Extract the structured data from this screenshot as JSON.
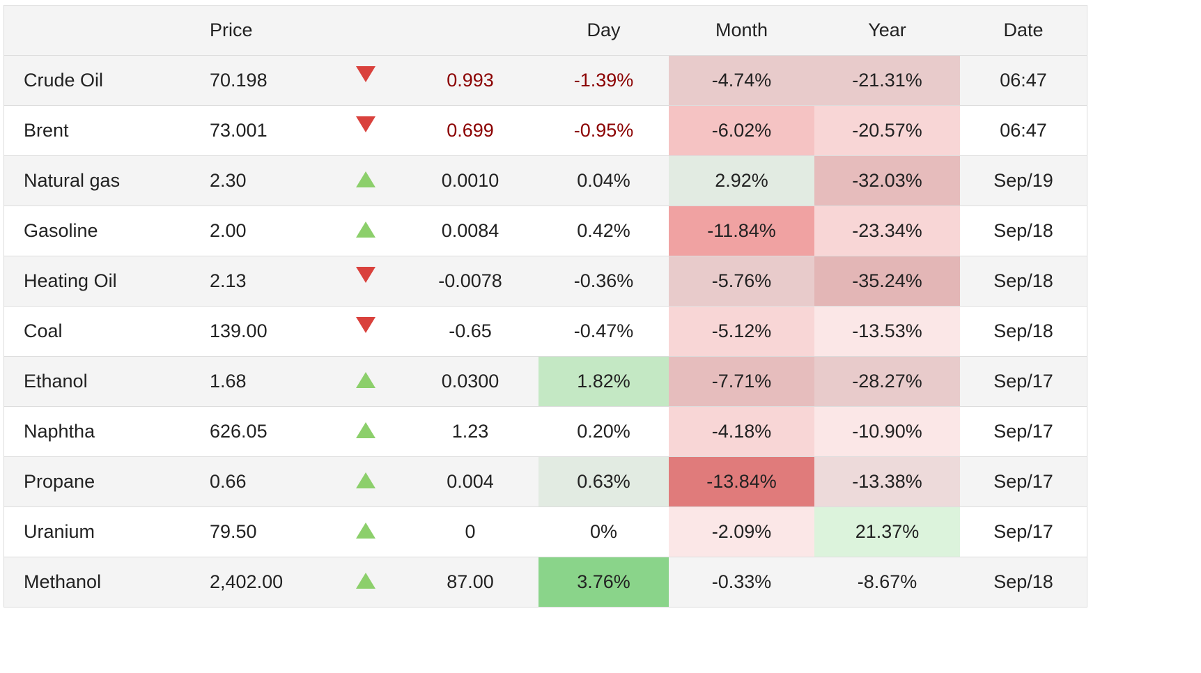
{
  "header": {
    "name": "",
    "price": "Price",
    "arrow": "",
    "change": "",
    "day": "Day",
    "month": "Month",
    "year": "Year",
    "date": "Date"
  },
  "rows": [
    {
      "name": "Crude Oil",
      "price": "70.198",
      "dir": "down",
      "change": "0.993",
      "change_red": true,
      "day": "-1.39%",
      "day_red": true,
      "day_bg": "",
      "month": "-4.74%",
      "month_bg": "#e8cbcb",
      "year": "-21.31%",
      "year_bg": "#e8cbcb",
      "date": "06:47"
    },
    {
      "name": "Brent",
      "price": "73.001",
      "dir": "down",
      "change": "0.699",
      "change_red": true,
      "day": "-0.95%",
      "day_red": true,
      "day_bg": "",
      "month": "-6.02%",
      "month_bg": "#f5c3c3",
      "year": "-20.57%",
      "year_bg": "#f8d6d6",
      "date": "06:47"
    },
    {
      "name": "Natural gas",
      "price": "2.30",
      "dir": "up",
      "change": "0.0010",
      "change_red": false,
      "day": "0.04%",
      "day_red": false,
      "day_bg": "",
      "month": "2.92%",
      "month_bg": "#e2ebe2",
      "year": "-32.03%",
      "year_bg": "#e6bcbc",
      "date": "Sep/19"
    },
    {
      "name": "Gasoline",
      "price": "2.00",
      "dir": "up",
      "change": "0.0084",
      "change_red": false,
      "day": "0.42%",
      "day_red": false,
      "day_bg": "",
      "month": "-11.84%",
      "month_bg": "#f0a2a2",
      "year": "-23.34%",
      "year_bg": "#f8d6d6",
      "date": "Sep/18"
    },
    {
      "name": "Heating Oil",
      "price": "2.13",
      "dir": "down",
      "change": "-0.0078",
      "change_red": false,
      "day": "-0.36%",
      "day_red": false,
      "day_bg": "",
      "month": "-5.76%",
      "month_bg": "#e8cbcb",
      "year": "-35.24%",
      "year_bg": "#e3b6b6",
      "date": "Sep/18"
    },
    {
      "name": "Coal",
      "price": "139.00",
      "dir": "down",
      "change": "-0.65",
      "change_red": false,
      "day": "-0.47%",
      "day_red": false,
      "day_bg": "",
      "month": "-5.12%",
      "month_bg": "#f8d6d6",
      "year": "-13.53%",
      "year_bg": "#fbe7e7",
      "date": "Sep/18"
    },
    {
      "name": "Ethanol",
      "price": "1.68",
      "dir": "up",
      "change": "0.0300",
      "change_red": false,
      "day": "1.82%",
      "day_red": false,
      "day_bg": "#c4e8c4",
      "month": "-7.71%",
      "month_bg": "#e6bdbd",
      "year": "-28.27%",
      "year_bg": "#e8cbcb",
      "date": "Sep/17"
    },
    {
      "name": "Naphtha",
      "price": "626.05",
      "dir": "up",
      "change": "1.23",
      "change_red": false,
      "day": "0.20%",
      "day_red": false,
      "day_bg": "",
      "month": "-4.18%",
      "month_bg": "#f8d6d6",
      "year": "-10.90%",
      "year_bg": "#fbe7e7",
      "date": "Sep/17"
    },
    {
      "name": "Propane",
      "price": "0.66",
      "dir": "up",
      "change": "0.004",
      "change_red": false,
      "day": "0.63%",
      "day_red": false,
      "day_bg": "#e2ebe2",
      "month": "-13.84%",
      "month_bg": "#e07b7b",
      "year": "-13.38%",
      "year_bg": "#eddada",
      "date": "Sep/17"
    },
    {
      "name": "Uranium",
      "price": "79.50",
      "dir": "up",
      "change": "0",
      "change_red": false,
      "day": "0%",
      "day_red": false,
      "day_bg": "",
      "month": "-2.09%",
      "month_bg": "#fbe7e7",
      "year": "21.37%",
      "year_bg": "#dcf3dc",
      "date": "Sep/17"
    },
    {
      "name": "Methanol",
      "price": "2,402.00",
      "dir": "up",
      "change": "87.00",
      "change_red": false,
      "day": "3.76%",
      "day_red": false,
      "day_bg": "#8ad48a",
      "month": "-0.33%",
      "month_bg": "",
      "year": "-8.67%",
      "year_bg": "",
      "date": "Sep/18"
    }
  ],
  "colors": {
    "header_bg": "#f4f4f4",
    "stripe_bg": "#f4f4f4",
    "border": "#dddddd",
    "arrow_down": "#d9413c",
    "arrow_up": "#8ccf6b",
    "negative_text": "#8b0000"
  }
}
